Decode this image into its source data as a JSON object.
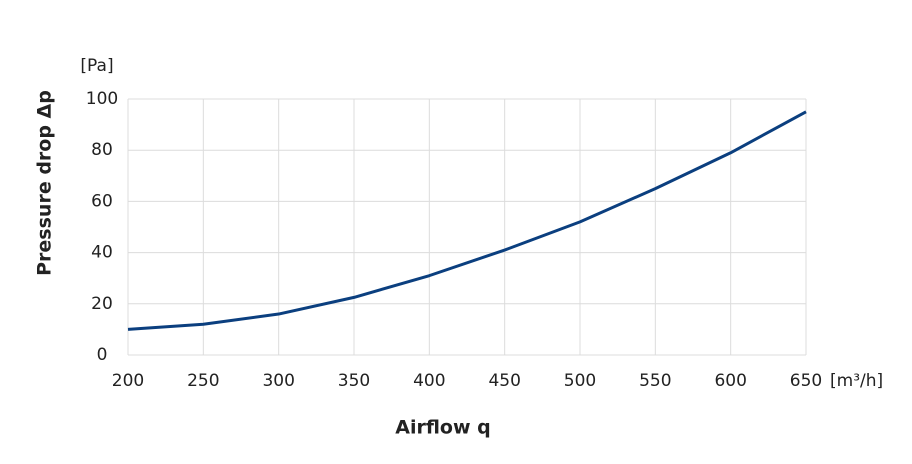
{
  "chart_data": {
    "type": "line",
    "x_label": "Airflow q",
    "y_label": "Pressure drop Δp",
    "x_unit": "[m³/h]",
    "y_unit": "[Pa]",
    "x": [
      200,
      250,
      300,
      350,
      400,
      450,
      500,
      550,
      600,
      650
    ],
    "series": [
      {
        "color": "#0b3f7f",
        "values": [
          10,
          12,
          16,
          22.5,
          31,
          41,
          52,
          65,
          79,
          95
        ]
      }
    ],
    "xlim": [
      200,
      650
    ],
    "xticks": [
      200,
      250,
      300,
      350,
      400,
      450,
      500,
      550,
      600,
      650
    ],
    "ylim": [
      0,
      100
    ],
    "yticks": [
      0,
      20,
      40,
      60,
      80,
      100
    ],
    "grid": true
  }
}
